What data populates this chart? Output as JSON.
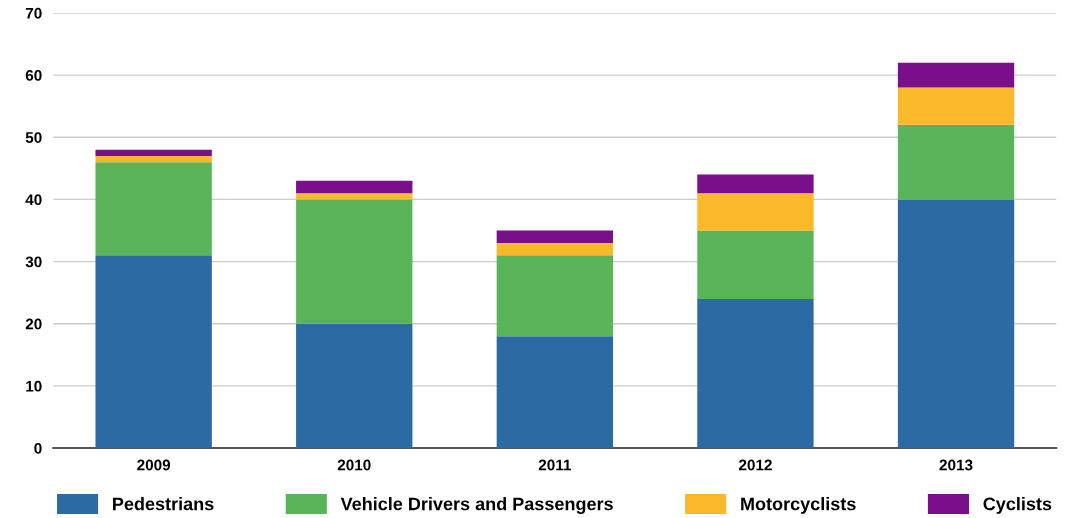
{
  "chart_data": {
    "type": "bar",
    "stacked": true,
    "categories": [
      "2009",
      "2010",
      "2011",
      "2012",
      "2013"
    ],
    "series": [
      {
        "name": "Pedestrians",
        "color": "#2b6aa3",
        "values": [
          31,
          20,
          18,
          24,
          40
        ]
      },
      {
        "name": "Vehicle Drivers and Passengers",
        "color": "#5ab459",
        "values": [
          15,
          20,
          13,
          11,
          12
        ]
      },
      {
        "name": "Motorcyclists",
        "color": "#fbb829",
        "values": [
          1,
          1,
          2,
          6,
          6
        ]
      },
      {
        "name": "Cyclists",
        "color": "#7a0f8c",
        "values": [
          1,
          2,
          2,
          3,
          4
        ]
      }
    ],
    "ylim": [
      0,
      70
    ],
    "yticks": [
      0,
      10,
      20,
      30,
      40,
      50,
      60,
      70
    ],
    "grid": "y",
    "legend": "bottom"
  }
}
